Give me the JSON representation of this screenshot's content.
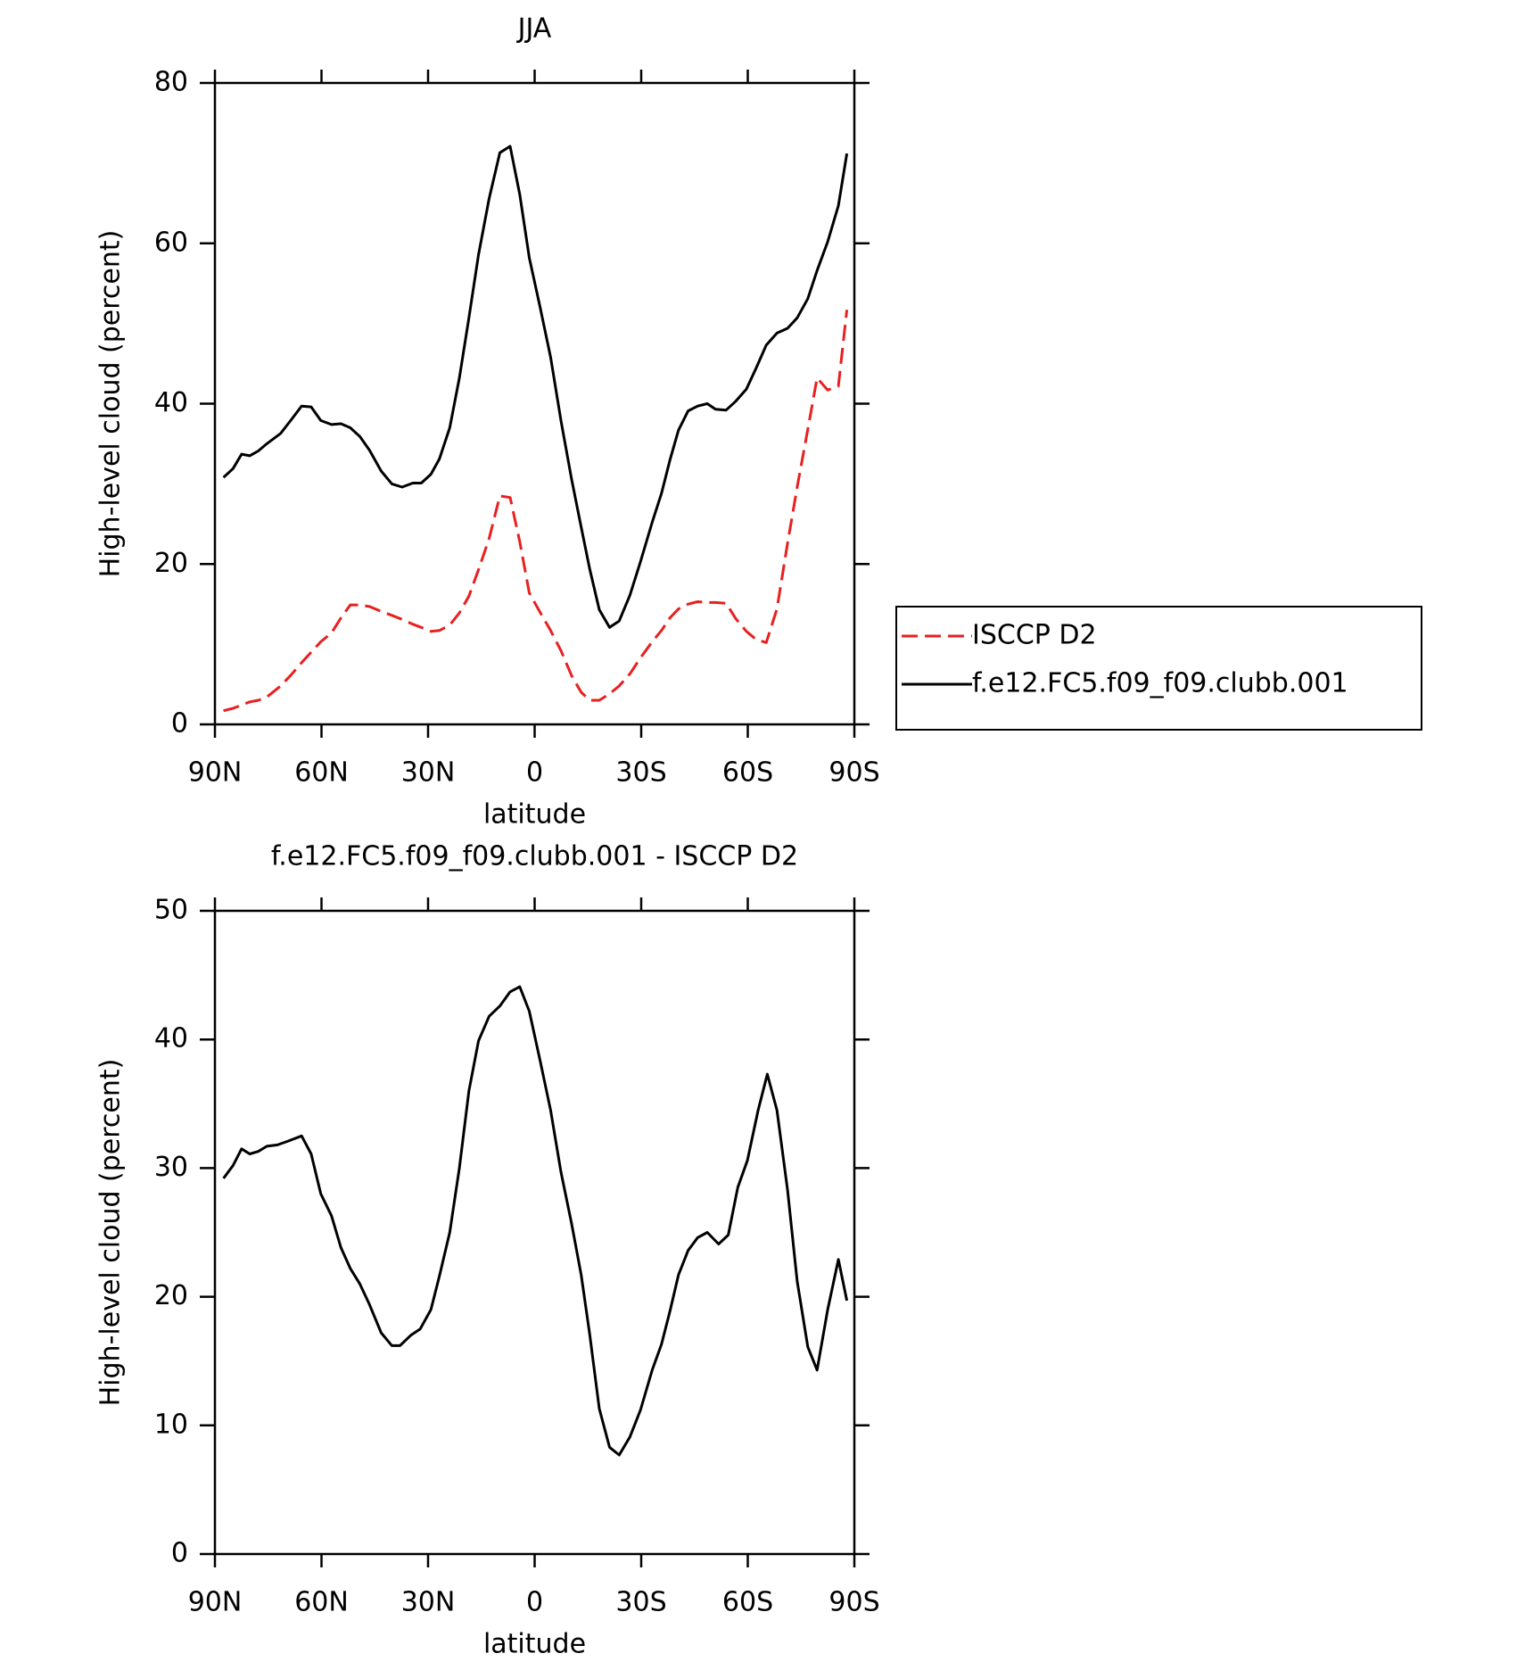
{
  "chart_data": [
    {
      "type": "line",
      "title": "JJA",
      "xlabel": "latitude",
      "ylabel": "High-level cloud (percent)",
      "x": [
        87.6,
        84.9,
        82.5,
        80.2,
        77.8,
        75.4,
        71.5,
        68.5,
        65.6,
        62.9,
        60.2,
        57.2,
        54.5,
        51.9,
        49.2,
        46.5,
        43.2,
        40.2,
        37.3,
        34.3,
        31.9,
        29.2,
        26.8,
        23.9,
        21.2,
        18.5,
        15.8,
        12.8,
        9.8,
        6.9,
        4.2,
        1.5,
        -1.5,
        -4.5,
        -7.4,
        -10.4,
        -13.1,
        -15.5,
        -18.2,
        -21.1,
        -23.8,
        -26.8,
        -29.8,
        -33.1,
        -35.7,
        -38.1,
        -40.5,
        -43.2,
        -45.9,
        -48.6,
        -50.9,
        -53.9,
        -56.6,
        -59.6,
        -62.3,
        -65.2,
        -68.2,
        -71.2,
        -73.9,
        -76.9,
        -79.5,
        -82.5,
        -85.5,
        -87.9
      ],
      "series": [
        {
          "name": "ISCCP D2",
          "color": "#e8201f",
          "dashed": true,
          "values": [
            1.7,
            2.0,
            2.4,
            2.8,
            3.0,
            3.4,
            4.8,
            6.2,
            7.7,
            9.0,
            10.3,
            11.4,
            13.3,
            14.9,
            14.9,
            14.7,
            14.1,
            13.6,
            13.1,
            12.5,
            12.1,
            11.6,
            11.7,
            12.4,
            13.9,
            16.0,
            19.3,
            23.2,
            28.5,
            28.3,
            22.8,
            16.4,
            14.0,
            11.7,
            9.2,
            6.1,
            4.0,
            3.0,
            3.0,
            3.8,
            4.8,
            6.3,
            8.3,
            10.3,
            11.7,
            13.3,
            14.4,
            15.0,
            15.3,
            15.2,
            15.2,
            15.1,
            13.2,
            11.6,
            10.6,
            10.2,
            14.4,
            22.6,
            29.6,
            36.8,
            43.2,
            41.7,
            42.2,
            51.7
          ]
        },
        {
          "name": "f.e12.FC5.f09_f09.clubb.001",
          "color": "#000000",
          "dashed": false,
          "values": [
            30.8,
            31.9,
            33.7,
            33.5,
            34.1,
            35.0,
            36.3,
            38.0,
            39.7,
            39.6,
            37.9,
            37.4,
            37.5,
            37.0,
            35.9,
            34.2,
            31.6,
            30.0,
            29.6,
            30.1,
            30.1,
            31.2,
            33.1,
            37.0,
            43.2,
            50.7,
            58.6,
            65.6,
            71.3,
            72.1,
            66.1,
            58.2,
            52.1,
            45.8,
            37.9,
            30.6,
            24.6,
            19.4,
            14.3,
            12.1,
            12.9,
            16.1,
            20.3,
            25.2,
            28.8,
            33.0,
            36.7,
            39.1,
            39.7,
            40.0,
            39.3,
            39.2,
            40.3,
            41.8,
            44.4,
            47.3,
            48.8,
            49.4,
            50.7,
            53.1,
            56.6,
            60.2,
            64.7,
            71.2
          ]
        }
      ],
      "xlim": [
        90,
        -90
      ],
      "xticks": [
        {
          "value": 90,
          "label": "90N"
        },
        {
          "value": 60,
          "label": "60N"
        },
        {
          "value": 30,
          "label": "30N"
        },
        0,
        {
          "value": -30,
          "label": "30S"
        },
        {
          "value": -60,
          "label": "60S"
        },
        {
          "value": -90,
          "label": "90S"
        }
      ],
      "ylim": [
        0,
        80
      ],
      "yticks": [
        0,
        20,
        40,
        60,
        80
      ],
      "legend": "right"
    },
    {
      "type": "line",
      "title": "f.e12.FC5.f09_f09.clubb.001 - ISCCP D2",
      "xlabel": "latitude",
      "ylabel": "High-level cloud (percent)",
      "x": [
        87.6,
        84.9,
        82.5,
        80.2,
        77.8,
        75.4,
        72.4,
        69.4,
        65.6,
        62.9,
        60.2,
        57.2,
        54.5,
        51.9,
        49.2,
        46.5,
        43.2,
        40.2,
        37.9,
        34.9,
        32.2,
        29.2,
        26.8,
        23.9,
        21.2,
        18.5,
        15.8,
        12.8,
        9.8,
        6.9,
        4.2,
        1.5,
        -1.5,
        -4.5,
        -7.4,
        -10.4,
        -13.1,
        -15.5,
        -18.2,
        -21.1,
        -23.8,
        -26.8,
        -29.8,
        -33.1,
        -35.7,
        -38.1,
        -40.5,
        -43.2,
        -45.9,
        -48.6,
        -51.8,
        -54.5,
        -57.2,
        -59.9,
        -62.9,
        -65.5,
        -68.2,
        -71.2,
        -73.9,
        -76.9,
        -79.5,
        -82.5,
        -85.5,
        -87.9
      ],
      "series": [
        {
          "color": "#000000",
          "dashed": false,
          "values": [
            29.2,
            30.2,
            31.5,
            31.1,
            31.3,
            31.7,
            31.8,
            32.1,
            32.5,
            31.1,
            28.0,
            26.3,
            23.8,
            22.2,
            21.0,
            19.4,
            17.2,
            16.2,
            16.2,
            17.0,
            17.5,
            19.0,
            21.6,
            25.0,
            30.0,
            36.0,
            39.9,
            41.8,
            42.6,
            43.7,
            44.1,
            42.2,
            38.4,
            34.5,
            29.7,
            25.7,
            21.7,
            17.1,
            11.3,
            8.3,
            7.7,
            9.1,
            11.2,
            14.3,
            16.3,
            18.9,
            21.7,
            23.6,
            24.6,
            25.0,
            24.1,
            24.8,
            28.5,
            30.6,
            34.5,
            37.3,
            34.5,
            28.3,
            21.2,
            16.1,
            14.3,
            19.0,
            22.9,
            19.7
          ]
        }
      ],
      "xlim": [
        90,
        -90
      ],
      "xticks": [
        {
          "value": 90,
          "label": "90N"
        },
        {
          "value": 60,
          "label": "60N"
        },
        {
          "value": 30,
          "label": "30N"
        },
        0,
        {
          "value": -30,
          "label": "30S"
        },
        {
          "value": -60,
          "label": "60S"
        },
        {
          "value": -90,
          "label": "90S"
        }
      ],
      "ylim": [
        0,
        50
      ],
      "yticks": [
        0,
        10,
        20,
        30,
        40,
        50
      ]
    }
  ]
}
